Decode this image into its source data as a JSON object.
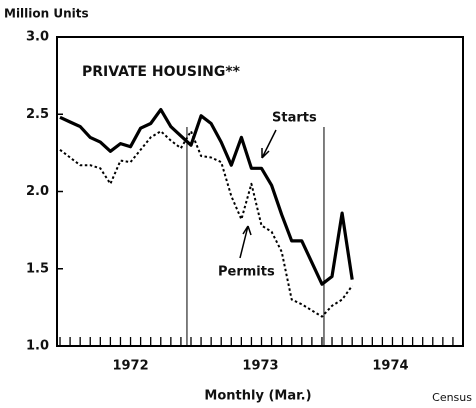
{
  "chart_data": {
    "type": "line",
    "title": "PRIVATE HOUSING**",
    "y_label": "Million Units",
    "x_label": "Monthly (Mar.)",
    "source": "Census",
    "x": [
      0,
      1,
      2,
      3,
      4,
      5,
      6,
      7,
      8,
      9,
      10,
      11,
      12,
      13,
      14,
      15,
      16,
      17,
      18,
      19,
      20,
      21,
      22,
      23,
      24,
      25,
      26,
      27,
      28,
      29
    ],
    "series": [
      {
        "name": "Starts",
        "color": "#000000",
        "dash": false,
        "values": [
          2.48,
          2.45,
          2.42,
          2.35,
          2.32,
          2.26,
          2.31,
          2.29,
          2.41,
          2.44,
          2.53,
          2.42,
          2.36,
          2.3,
          2.49,
          2.44,
          2.32,
          2.17,
          2.35,
          2.15,
          2.15,
          2.04,
          1.85,
          1.68,
          1.68,
          1.54,
          1.4,
          1.45,
          1.86,
          1.43
        ]
      },
      {
        "name": "Permits",
        "color": "#000000",
        "dash": true,
        "values": [
          2.27,
          2.22,
          2.17,
          2.17,
          2.15,
          2.05,
          2.2,
          2.19,
          2.27,
          2.35,
          2.39,
          2.33,
          2.28,
          2.39,
          2.23,
          2.22,
          2.19,
          1.97,
          1.82,
          2.05,
          1.78,
          1.74,
          1.61,
          1.3,
          1.27,
          1.23,
          1.19,
          1.26,
          1.3,
          1.39
        ]
      }
    ],
    "xlim": [
      -0.3,
      40
    ],
    "xticks": [
      {
        "value": 7,
        "label": "1972"
      },
      {
        "value": 19.9,
        "label": "1973"
      },
      {
        "value": 32.8,
        "label": "1974"
      }
    ],
    "minor_xticks": [
      0,
      1,
      2,
      3,
      4,
      5,
      6,
      7,
      8,
      9,
      10,
      11,
      12,
      13,
      14,
      15,
      16,
      17,
      18,
      19,
      20,
      21,
      22,
      23,
      24,
      25,
      26,
      27,
      28,
      29,
      30,
      31,
      32,
      33,
      34,
      35,
      36,
      37,
      38,
      39
    ],
    "ylim": [
      1,
      3
    ],
    "yticks": [
      {
        "value": 1,
        "label": "1.0"
      },
      1.5,
      {
        "value": 2,
        "label": "2.0"
      },
      2.5,
      {
        "value": 3,
        "label": "3.0"
      }
    ],
    "reference_lines": [
      12.6,
      26.2
    ]
  }
}
